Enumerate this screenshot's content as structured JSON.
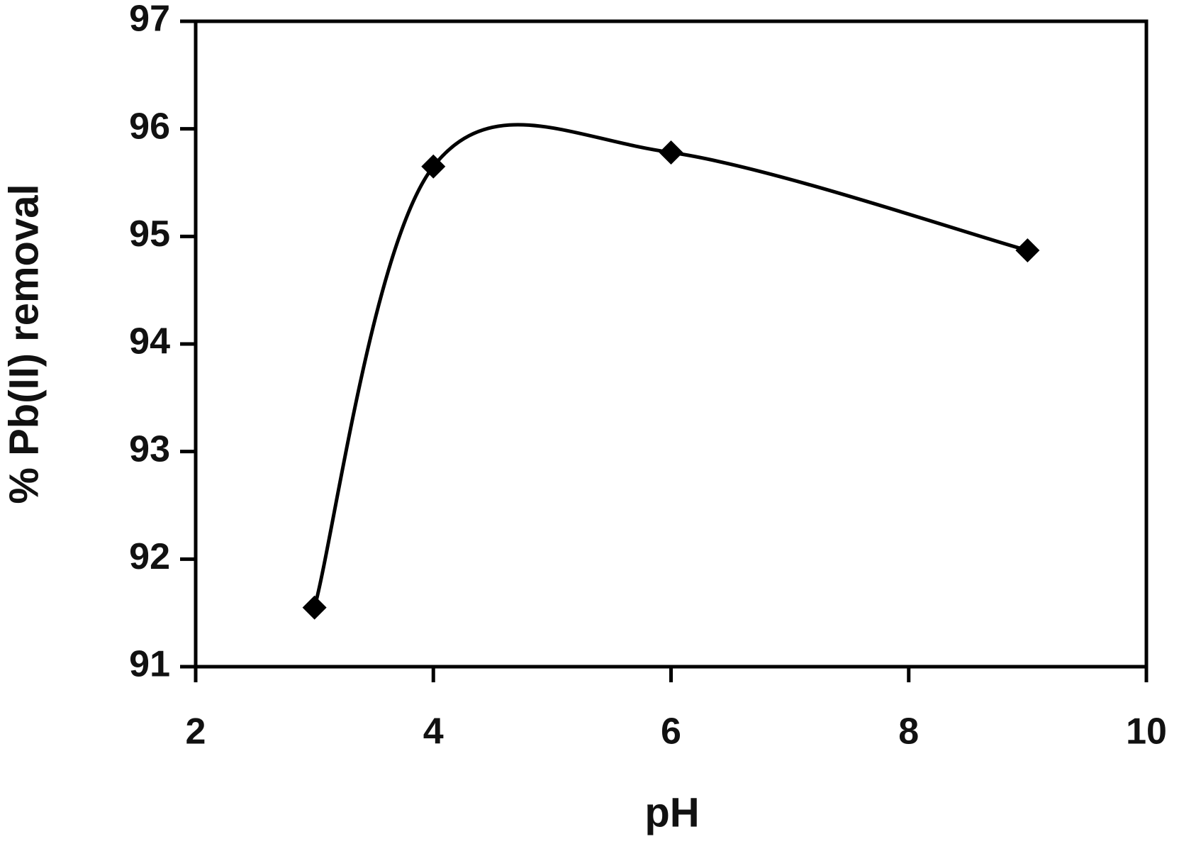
{
  "chart_data": {
    "type": "line",
    "x_label": "pH",
    "y_label": "% Pb(II) removal",
    "series": [
      {
        "x": [
          3,
          4,
          6,
          9
        ],
        "values": [
          91.55,
          95.65,
          95.78,
          94.87
        ],
        "color": "#000000",
        "smooth": true,
        "marker": "diamond"
      }
    ],
    "xlim": [
      2,
      10
    ],
    "xticks": [
      2,
      4,
      6,
      8,
      10
    ],
    "ylim": [
      91,
      97
    ],
    "yticks": [
      91,
      92,
      93,
      94,
      95,
      96,
      97
    ],
    "grid": false
  }
}
